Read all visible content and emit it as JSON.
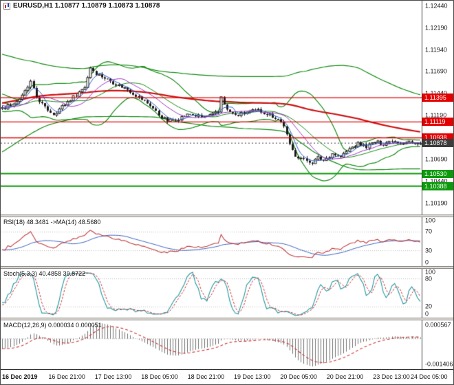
{
  "window": {
    "header_text": "EURUSD,H1 1.10877 1.10879 1.10873 1.10878"
  },
  "main_chart": {
    "price_axis_labels": [
      {
        "text": "1.12440",
        "price": 1.1244
      },
      {
        "text": "1.12190",
        "price": 1.1219
      },
      {
        "text": "1.11940",
        "price": 1.1194
      },
      {
        "text": "1.11690",
        "price": 1.1169
      },
      {
        "text": "1.11440",
        "price": 1.1144
      },
      {
        "text": "1.11190",
        "price": 1.1119
      },
      {
        "text": "1.10940",
        "price": 1.1094
      },
      {
        "text": "1.10690",
        "price": 1.1069
      },
      {
        "text": "1.10440",
        "price": 1.1044
      },
      {
        "text": "1.10190",
        "price": 1.1019
      }
    ],
    "levels": [
      {
        "label": "1.11395",
        "price": 1.11395,
        "color": "#e40000",
        "line": "solid",
        "width": 1.4,
        "kind": "resistance"
      },
      {
        "label": "1.11119",
        "price": 1.11119,
        "color": "#e40000",
        "line": "solid",
        "width": 1.4,
        "kind": "resistance"
      },
      {
        "label": "1.10938",
        "price": 1.10938,
        "color": "#e40000",
        "line": "solid",
        "width": 1.4,
        "kind": "resistance"
      },
      {
        "label": "1.10878",
        "price": 1.10878,
        "color": "#3c3c3c",
        "line": "dotted",
        "width": 1,
        "kind": "current-price"
      },
      {
        "label": "1.10530",
        "price": 1.1053,
        "color": "#0b9a0b",
        "line": "solid",
        "width": 2,
        "kind": "support"
      },
      {
        "label": "1.10388",
        "price": 1.10388,
        "color": "#0b9a0b",
        "line": "solid",
        "width": 2,
        "kind": "support"
      }
    ]
  },
  "panels": {
    "rsi": {
      "header": "RSI(18) 48.3481 ->MA(14) 48.5680",
      "axis_labels": [
        {
          "text": "100",
          "value": 100
        },
        {
          "text": "70",
          "value": 70
        },
        {
          "text": "30",
          "value": 30
        },
        {
          "text": "0",
          "value": 0
        }
      ],
      "levels": [
        70,
        30
      ],
      "colors": {
        "rsi": "#c03a3a",
        "ma": "#3a62c0"
      }
    },
    "stoch": {
      "header": "Stoch(5,3,3) 40.4858 39.8722",
      "axis_labels": [
        {
          "text": "100",
          "value": 100
        },
        {
          "text": "80",
          "value": 80
        },
        {
          "text": "20",
          "value": 20
        },
        {
          "text": "0",
          "value": 0
        }
      ],
      "levels": [
        80,
        20
      ],
      "colors": {
        "k": "#2196a0",
        "d": "#d03030"
      }
    },
    "macd": {
      "header": "MACD(12,26,9) 0.000034 0.000051",
      "axis_labels": [
        {
          "text": "0.000567",
          "pos": "top"
        },
        {
          "text": "-0.001406",
          "pos": "bottom"
        }
      ],
      "colors": {
        "hist": "#707070",
        "signal": "#d03030"
      }
    }
  },
  "time_axis": {
    "labels": [
      "16 Dec 2019",
      "16 Dec 21:00",
      "17 Dec 13:00",
      "18 Dec 05:00",
      "18 Dec 21:00",
      "19 Dec 13:00",
      "20 Dec 05:00",
      "20 Dec 21:00",
      "23 Dec 13:00",
      "24 Dec 05:00"
    ]
  },
  "chart_data": {
    "type": "candlestick",
    "symbol": "EURUSD",
    "timeframe": "H1",
    "current_bar": {
      "open": 1.10877,
      "high": 1.10879,
      "low": 1.10873,
      "close": 1.10878
    },
    "bars": 148,
    "pre_bars": 120,
    "noise": 0.00042,
    "wick": 0.00026,
    "scale": {
      "max": 1.125,
      "min": 1.10065
    },
    "price_anchors": [
      [
        -120,
        1.1072
      ],
      [
        -100,
        1.1062
      ],
      [
        -80,
        1.1098
      ],
      [
        -60,
        1.1145
      ],
      [
        -44,
        1.1172
      ],
      [
        -30,
        1.1155
      ],
      [
        -18,
        1.1142
      ],
      [
        -8,
        1.1132
      ],
      [
        0,
        1.1127
      ],
      [
        4,
        1.1133
      ],
      [
        7,
        1.1141
      ],
      [
        10,
        1.1157
      ],
      [
        12,
        1.114
      ],
      [
        15,
        1.1128
      ],
      [
        18,
        1.1121
      ],
      [
        22,
        1.1132
      ],
      [
        26,
        1.1143
      ],
      [
        29,
        1.1152
      ],
      [
        31,
        1.1174
      ],
      [
        33,
        1.1167
      ],
      [
        36,
        1.1162
      ],
      [
        40,
        1.1155
      ],
      [
        44,
        1.1149
      ],
      [
        48,
        1.114
      ],
      [
        52,
        1.1131
      ],
      [
        55,
        1.112
      ],
      [
        58,
        1.1113
      ],
      [
        62,
        1.1116
      ],
      [
        66,
        1.1121
      ],
      [
        70,
        1.1117
      ],
      [
        74,
        1.112
      ],
      [
        76,
        1.1123
      ],
      [
        77,
        1.1141
      ],
      [
        79,
        1.1125
      ],
      [
        82,
        1.1119
      ],
      [
        86,
        1.1123
      ],
      [
        90,
        1.1125
      ],
      [
        94,
        1.112
      ],
      [
        97,
        1.1115
      ],
      [
        99,
        1.1108
      ],
      [
        101,
        1.1085
      ],
      [
        103,
        1.1074
      ],
      [
        106,
        1.1069
      ],
      [
        109,
        1.1066
      ],
      [
        111,
        1.1071
      ],
      [
        113,
        1.1068
      ],
      [
        116,
        1.1076
      ],
      [
        119,
        1.1072
      ],
      [
        122,
        1.1081
      ],
      [
        125,
        1.1087
      ],
      [
        128,
        1.1084
      ],
      [
        131,
        1.1089
      ],
      [
        134,
        1.1087
      ],
      [
        137,
        1.1091
      ],
      [
        140,
        1.1088
      ],
      [
        143,
        1.109
      ],
      [
        145,
        1.1086
      ],
      [
        147,
        1.1088
      ]
    ],
    "overlays": {
      "bollinger_fast": {
        "period": 20,
        "dev": 2,
        "color": "#118a11",
        "width": 1.2
      },
      "bollinger_slow": {
        "period": 96,
        "dev": 2,
        "color": "#118a11",
        "width": 1.2
      },
      "ma_slow": {
        "period": 96,
        "color": "#cc1111",
        "width": 2.2
      },
      "ma_fast1": {
        "period": 5,
        "color": "#2e58c8",
        "width": 1
      },
      "ma_fast2": {
        "period": 13,
        "color": "#9a35c0",
        "width": 1
      }
    },
    "indicators": {
      "rsi": {
        "period": 18,
        "ma": 14,
        "last": 48.3481,
        "ma_last": 48.568
      },
      "stoch": {
        "k": 5,
        "d": 3,
        "slowing": 3,
        "last_k": 40.4858,
        "last_d": 39.8722
      },
      "macd": {
        "fast": 12,
        "slow": 26,
        "signal": 9,
        "last": 3.4e-05,
        "last_signal": 5.1e-05,
        "axis_max": 0.000567,
        "axis_min": -0.001406
      }
    }
  }
}
